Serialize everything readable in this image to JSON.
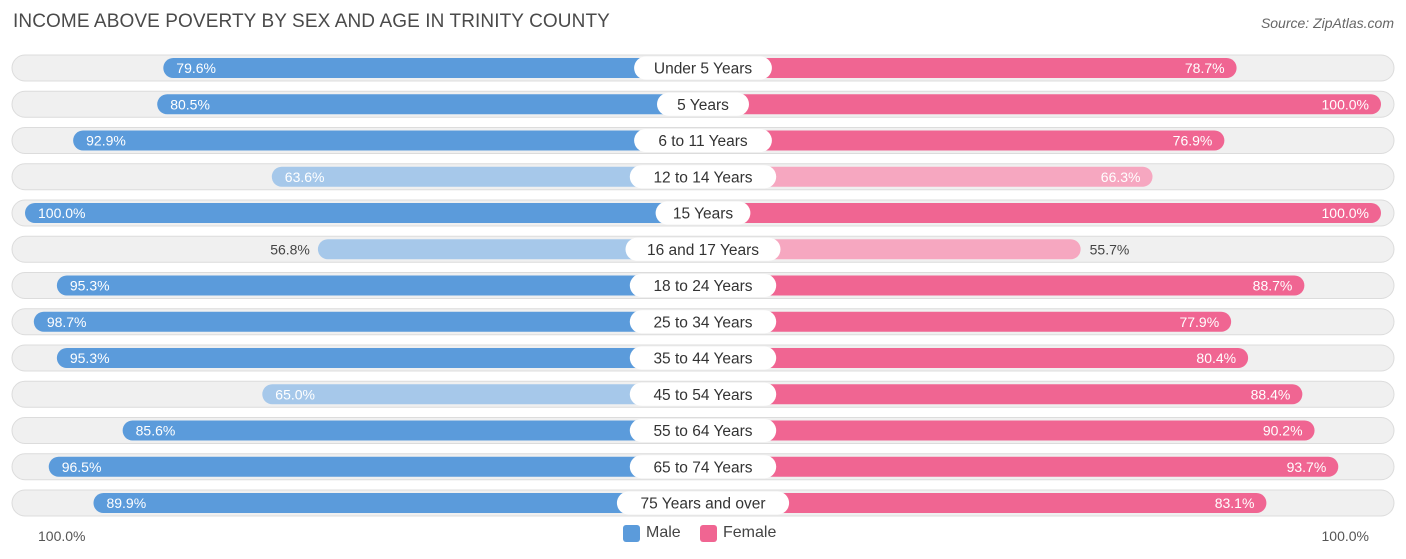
{
  "title": "INCOME ABOVE POVERTY BY SEX AND AGE IN TRINITY COUNTY",
  "source": "Source: ZipAtlas.com",
  "colors": {
    "male_strong": "#5b9bdb",
    "male_light": "#a6c8ea",
    "female_strong": "#f06592",
    "female_light": "#f6a7c0",
    "track": "#f0f0f0",
    "track_border": "#dcdcdc"
  },
  "chart_data": {
    "type": "bar",
    "orientation": "horizontal-diverging",
    "title": "INCOME ABOVE POVERTY BY SEX AND AGE IN TRINITY COUNTY",
    "categories": [
      "Under 5 Years",
      "5 Years",
      "6 to 11 Years",
      "12 to 14 Years",
      "15 Years",
      "16 and 17 Years",
      "18 to 24 Years",
      "25 to 34 Years",
      "35 to 44 Years",
      "45 to 54 Years",
      "55 to 64 Years",
      "65 to 74 Years",
      "75 Years and over"
    ],
    "series": [
      {
        "name": "Male",
        "values": [
          79.6,
          80.5,
          92.9,
          63.6,
          100.0,
          56.8,
          95.3,
          98.7,
          95.3,
          65.0,
          85.6,
          96.5,
          89.9
        ],
        "labels": [
          "79.6%",
          "80.5%",
          "92.9%",
          "63.6%",
          "100.0%",
          "56.8%",
          "95.3%",
          "98.7%",
          "95.3%",
          "65.0%",
          "85.6%",
          "96.5%",
          "89.9%"
        ]
      },
      {
        "name": "Female",
        "values": [
          78.7,
          100.0,
          76.9,
          66.3,
          100.0,
          55.7,
          88.7,
          77.9,
          80.4,
          88.4,
          90.2,
          93.7,
          83.1
        ],
        "labels": [
          "78.7%",
          "100.0%",
          "76.9%",
          "66.3%",
          "100.0%",
          "55.7%",
          "88.7%",
          "77.9%",
          "80.4%",
          "88.4%",
          "90.2%",
          "93.7%",
          "83.1%"
        ]
      }
    ],
    "xlim": [
      0,
      100
    ],
    "axis_left_label": "100.0%",
    "axis_right_label": "100.0%",
    "legend": [
      "Male",
      "Female"
    ]
  }
}
